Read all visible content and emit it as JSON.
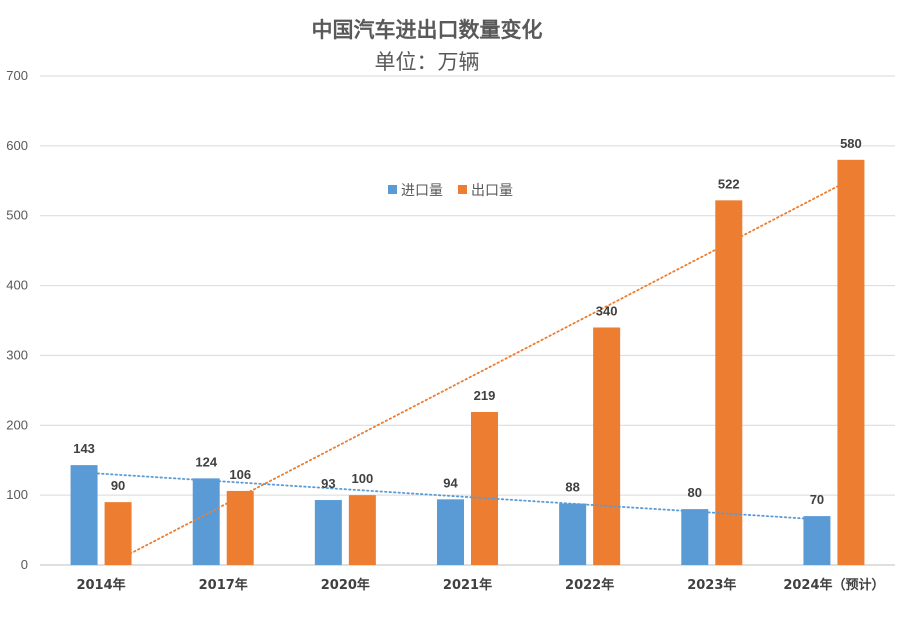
{
  "chart_data": {
    "type": "bar",
    "title": "中国汽车进出口数量变化",
    "subtitle": "单位：万辆",
    "categories": [
      "2014年",
      "2017年",
      "2020年",
      "2021年",
      "2022年",
      "2023年",
      "2024年（预计）"
    ],
    "series": [
      {
        "name": "进口量",
        "color": "#5B9BD5",
        "values": [
          143,
          124,
          93,
          94,
          88,
          80,
          70
        ]
      },
      {
        "name": "出口量",
        "color": "#ED7D31",
        "values": [
          90,
          106,
          100,
          219,
          340,
          522,
          580
        ]
      }
    ],
    "ylim": [
      0,
      700
    ],
    "yticks": [
      0,
      100,
      200,
      300,
      400,
      500,
      600,
      700
    ],
    "grid": true,
    "legend_position": "top-center",
    "trendlines": [
      {
        "series": "进口量",
        "kind": "linear",
        "style": "dotted"
      },
      {
        "series": "出口量",
        "kind": "linear",
        "style": "dotted"
      }
    ],
    "xlabel": "",
    "ylabel": ""
  }
}
